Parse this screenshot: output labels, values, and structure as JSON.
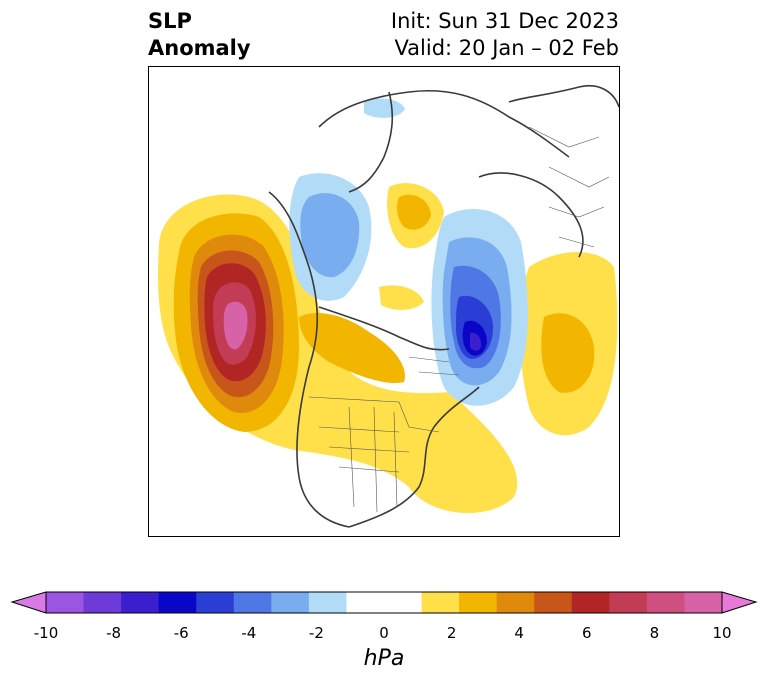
{
  "title": {
    "left_line1": "SLP",
    "left_line2": "Anomaly",
    "right_line1": "Init: Sun 31 Dec 2023",
    "right_line2": "Valid: 20 Jan – 02 Feb"
  },
  "colorbar": {
    "unit": "hPa",
    "ticks": [
      "-10",
      "-8",
      "-6",
      "-4",
      "-2",
      "0",
      "2",
      "4",
      "6",
      "8",
      "10"
    ],
    "colors": [
      "#d97be6",
      "#9b55e0",
      "#6e3ad8",
      "#3b1fcf",
      "#0a06c8",
      "#2a3ed6",
      "#4f77e5",
      "#79adf0",
      "#b2dbf7",
      "#ffffff",
      "#ffffff",
      "#ffe04a",
      "#f2b600",
      "#df8a0c",
      "#c8561a",
      "#b22525",
      "#c23c55",
      "#cf4f80",
      "#d862a8",
      "#e77ad6"
    ]
  }
}
